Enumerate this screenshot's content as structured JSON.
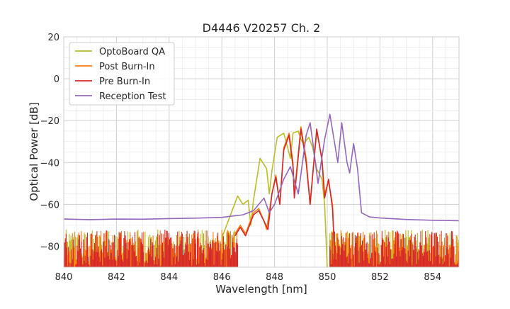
{
  "chart_data": {
    "type": "line",
    "title": "D4446 V20257 Ch. 2",
    "xlabel": "Wavelength [nm]",
    "ylabel": "Optical Power [dB]",
    "xlim": [
      840,
      855
    ],
    "ylim": [
      -90,
      20
    ],
    "xticks": [
      840,
      842,
      844,
      846,
      848,
      850,
      852,
      854
    ],
    "yticks": [
      20,
      0,
      -20,
      -40,
      -60,
      -80
    ],
    "ytick_labels": [
      "20",
      "0",
      "−20",
      "−40",
      "−60",
      "−80"
    ],
    "grid": true,
    "legend_position": "top-left",
    "series": [
      {
        "name": "OptoBoard QA",
        "color": "#bcbd22",
        "noise_floor": true,
        "points": [
          [
            846.0,
            -76
          ],
          [
            846.3,
            -66
          ],
          [
            846.6,
            -56
          ],
          [
            846.8,
            -60
          ],
          [
            847.0,
            -58
          ],
          [
            847.1,
            -70
          ],
          [
            847.2,
            -58
          ],
          [
            847.45,
            -38
          ],
          [
            847.7,
            -43
          ],
          [
            847.8,
            -55
          ],
          [
            847.9,
            -44
          ],
          [
            848.1,
            -28
          ],
          [
            848.35,
            -26
          ],
          [
            848.5,
            -33
          ],
          [
            848.6,
            -38
          ],
          [
            848.7,
            -26
          ],
          [
            848.9,
            -25
          ],
          [
            849.0,
            -29
          ],
          [
            849.1,
            -31
          ],
          [
            849.3,
            -28
          ],
          [
            849.45,
            -33
          ],
          [
            849.6,
            -43
          ],
          [
            849.8,
            -48
          ],
          [
            849.9,
            -60
          ],
          [
            850.0,
            -90
          ]
        ]
      },
      {
        "name": "Post Burn-In",
        "color": "#ff7f0e",
        "noise_floor": true,
        "points": [
          [
            846.5,
            -74
          ],
          [
            846.7,
            -70
          ],
          [
            846.9,
            -74
          ],
          [
            847.2,
            -64
          ],
          [
            847.4,
            -62
          ],
          [
            847.6,
            -68
          ],
          [
            847.7,
            -72
          ],
          [
            847.9,
            -55
          ],
          [
            848.05,
            -46
          ],
          [
            848.2,
            -60
          ],
          [
            848.35,
            -33
          ],
          [
            848.55,
            -26
          ],
          [
            848.7,
            -40
          ],
          [
            848.75,
            -55
          ],
          [
            849.0,
            -23
          ],
          [
            849.2,
            -38
          ],
          [
            849.35,
            -60
          ],
          [
            849.6,
            -25
          ],
          [
            849.8,
            -38
          ],
          [
            849.9,
            -55
          ],
          [
            850.05,
            -49
          ],
          [
            850.2,
            -60
          ],
          [
            850.3,
            -90
          ]
        ]
      },
      {
        "name": "Pre Burn-In",
        "color": "#d62728",
        "noise_floor": true,
        "points": [
          [
            846.5,
            -75
          ],
          [
            846.7,
            -71
          ],
          [
            846.9,
            -75
          ],
          [
            847.2,
            -65
          ],
          [
            847.4,
            -63
          ],
          [
            847.6,
            -68
          ],
          [
            847.75,
            -72
          ],
          [
            847.9,
            -55
          ],
          [
            848.05,
            -47
          ],
          [
            848.2,
            -60
          ],
          [
            848.35,
            -34
          ],
          [
            848.55,
            -27
          ],
          [
            848.7,
            -42
          ],
          [
            848.75,
            -57
          ],
          [
            849.0,
            -24
          ],
          [
            849.2,
            -40
          ],
          [
            849.35,
            -60
          ],
          [
            849.6,
            -24
          ],
          [
            849.8,
            -39
          ],
          [
            849.9,
            -57
          ],
          [
            850.05,
            -48
          ],
          [
            850.2,
            -62
          ],
          [
            850.3,
            -90
          ]
        ]
      },
      {
        "name": "Reception Test",
        "color": "#9467bd",
        "noise_floor": false,
        "points": [
          [
            840.0,
            -67
          ],
          [
            841.0,
            -67.3
          ],
          [
            842.0,
            -67
          ],
          [
            843.0,
            -67.1
          ],
          [
            844.0,
            -66.8
          ],
          [
            845.0,
            -66.6
          ],
          [
            846.0,
            -66.2
          ],
          [
            846.8,
            -65
          ],
          [
            847.2,
            -63
          ],
          [
            847.4,
            -60
          ],
          [
            847.6,
            -57
          ],
          [
            847.8,
            -64
          ],
          [
            848.0,
            -60
          ],
          [
            848.35,
            -48
          ],
          [
            848.6,
            -42
          ],
          [
            848.9,
            -55
          ],
          [
            849.2,
            -27
          ],
          [
            849.35,
            -21
          ],
          [
            849.5,
            -35
          ],
          [
            849.65,
            -50
          ],
          [
            849.9,
            -29
          ],
          [
            850.1,
            -17
          ],
          [
            850.4,
            -40
          ],
          [
            850.55,
            -21
          ],
          [
            850.75,
            -40
          ],
          [
            850.85,
            -45
          ],
          [
            851.0,
            -31
          ],
          [
            851.15,
            -43
          ],
          [
            851.3,
            -64
          ],
          [
            851.6,
            -66
          ],
          [
            852.0,
            -66.5
          ],
          [
            853.0,
            -67.2
          ],
          [
            854.0,
            -67.6
          ],
          [
            855.0,
            -67.8
          ]
        ]
      }
    ]
  }
}
